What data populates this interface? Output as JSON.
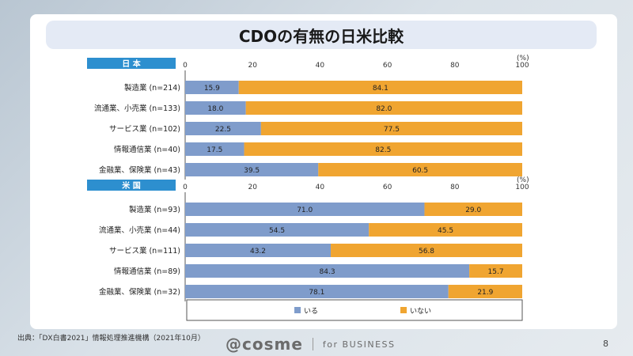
{
  "title": "CDOの有無の日米比較",
  "source": "出典：「DX白書2021」情報処理推進機構（2021年10月）",
  "logo": {
    "mark": "@cosme",
    "sub": "for BUSINESS"
  },
  "page_number": "8",
  "colors": {
    "iru": "#7f9ccb",
    "inai": "#f0a531",
    "header": "#2d8fcf"
  },
  "chart_data": [
    {
      "type": "bar",
      "orientation": "horizontal",
      "stacked": true,
      "title": "日 本",
      "unit": "(%)",
      "xlim": [
        0,
        100
      ],
      "ticks": [
        0,
        20,
        40,
        60,
        80,
        100
      ],
      "categories": [
        "製造業 (n=214)",
        "流通業、小売業 (n=133)",
        "サービス業 (n=102)",
        "情報通信業 (n=40)",
        "金融業、保険業 (n=43)"
      ],
      "series": [
        {
          "name": "いる",
          "values": [
            15.9,
            18.0,
            22.5,
            17.5,
            39.5
          ]
        },
        {
          "name": "いない",
          "values": [
            84.1,
            82.0,
            77.5,
            82.5,
            60.5
          ]
        }
      ]
    },
    {
      "type": "bar",
      "orientation": "horizontal",
      "stacked": true,
      "title": "米 国",
      "unit": "(%)",
      "xlim": [
        0,
        100
      ],
      "ticks": [
        0,
        20,
        40,
        60,
        80,
        100
      ],
      "categories": [
        "製造業 (n=93)",
        "流通業、小売業 (n=44)",
        "サービス業 (n=111)",
        "情報通信業 (n=89)",
        "金融業、保険業 (n=32)"
      ],
      "series": [
        {
          "name": "いる",
          "values": [
            71.0,
            54.5,
            43.2,
            84.3,
            78.1
          ]
        },
        {
          "name": "いない",
          "values": [
            29.0,
            45.5,
            56.8,
            15.7,
            21.9
          ]
        }
      ]
    }
  ],
  "legend": [
    "いる",
    "いない"
  ]
}
